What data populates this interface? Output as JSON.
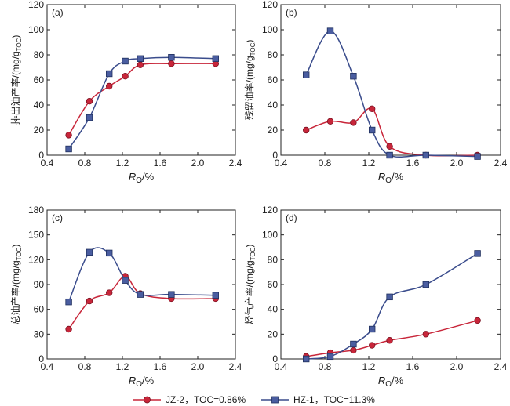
{
  "legend": {
    "jz2_label": "JZ-2，TOC=0.86%",
    "hz1_label": "HZ-1，TOC=11.3%"
  },
  "colors": {
    "jz2": "#c8263a",
    "hz1": "#3a4c8c"
  },
  "chart_data": [
    {
      "type": "line",
      "panel_label": "(a)",
      "xlabel": "R_O/%",
      "ylabel": "排出油产率/(mg/g_TOC)",
      "xlim": [
        0.4,
        2.4
      ],
      "ylim": [
        0,
        120
      ],
      "xticks": [
        "0.4",
        "0.8",
        "1.2",
        "1.6",
        "2.0",
        "2.4"
      ],
      "yticks": [
        "0",
        "20",
        "40",
        "60",
        "80",
        "100",
        "120"
      ],
      "series": [
        {
          "name": "JZ-2，TOC=0.86%",
          "x": [
            0.63,
            0.85,
            1.06,
            1.23,
            1.39,
            1.72,
            2.19
          ],
          "y": [
            16,
            43,
            55,
            63,
            72,
            73,
            73
          ]
        },
        {
          "name": "HZ-1，TOC=11.3%",
          "x": [
            0.63,
            0.85,
            1.06,
            1.23,
            1.39,
            1.72,
            2.19
          ],
          "y": [
            5,
            30,
            65,
            75,
            77,
            78,
            77
          ]
        }
      ]
    },
    {
      "type": "line",
      "panel_label": "(b)",
      "xlabel": "R_O/%",
      "ylabel": "残留油率/(mg/g_TOC)",
      "xlim": [
        0.4,
        2.4
      ],
      "ylim": [
        0,
        120
      ],
      "xticks": [
        "0.4",
        "0.8",
        "1.2",
        "1.6",
        "2.0",
        "2.4"
      ],
      "yticks": [
        "0",
        "20",
        "40",
        "60",
        "80",
        "100",
        "120"
      ],
      "series": [
        {
          "name": "JZ-2，TOC=0.86%",
          "x": [
            0.63,
            0.85,
            1.06,
            1.23,
            1.39,
            1.72,
            2.19
          ],
          "y": [
            20,
            27,
            26,
            37,
            7,
            0,
            0
          ]
        },
        {
          "name": "HZ-1，TOC=11.3%",
          "x": [
            0.63,
            0.85,
            1.06,
            1.23,
            1.39,
            1.72,
            2.19
          ],
          "y": [
            64,
            99,
            63,
            20,
            0,
            0,
            -1
          ]
        }
      ]
    },
    {
      "type": "line",
      "panel_label": "(c)",
      "xlabel": "R_O/%",
      "ylabel": "总油产率/(mg/g_TOC)",
      "xlim": [
        0.4,
        2.4
      ],
      "ylim": [
        0,
        180
      ],
      "xticks": [
        "0.4",
        "0.8",
        "1.2",
        "1.6",
        "2.0",
        "2.4"
      ],
      "yticks": [
        "0",
        "30",
        "60",
        "90",
        "120",
        "150",
        "180"
      ],
      "series": [
        {
          "name": "JZ-2，TOC=0.86%",
          "x": [
            0.63,
            0.85,
            1.06,
            1.23,
            1.39,
            1.72,
            2.19
          ],
          "y": [
            36,
            70,
            80,
            100,
            79,
            73,
            73
          ]
        },
        {
          "name": "HZ-1，TOC=11.3%",
          "x": [
            0.63,
            0.85,
            1.06,
            1.23,
            1.39,
            1.72,
            2.19
          ],
          "y": [
            69,
            129,
            128,
            95,
            78,
            78,
            77
          ]
        }
      ]
    },
    {
      "type": "line",
      "panel_label": "(d)",
      "xlabel": "R_O/%",
      "ylabel": "烃气产率/(mg/g_TOC)",
      "xlim": [
        0.4,
        2.4
      ],
      "ylim": [
        0,
        120
      ],
      "xticks": [
        "0.4",
        "0.8",
        "1.2",
        "1.6",
        "2.0",
        "2.4"
      ],
      "yticks": [
        "0",
        "20",
        "40",
        "60",
        "80",
        "100",
        "120"
      ],
      "series": [
        {
          "name": "JZ-2，TOC=0.86%",
          "x": [
            0.63,
            0.85,
            1.06,
            1.23,
            1.39,
            1.72,
            2.19
          ],
          "y": [
            2,
            5,
            7,
            11,
            15,
            20,
            31
          ]
        },
        {
          "name": "HZ-1，TOC=11.3%",
          "x": [
            0.63,
            0.85,
            1.06,
            1.23,
            1.39,
            1.72,
            2.19
          ],
          "y": [
            0,
            2,
            12,
            24,
            50,
            60,
            85
          ]
        }
      ]
    }
  ]
}
